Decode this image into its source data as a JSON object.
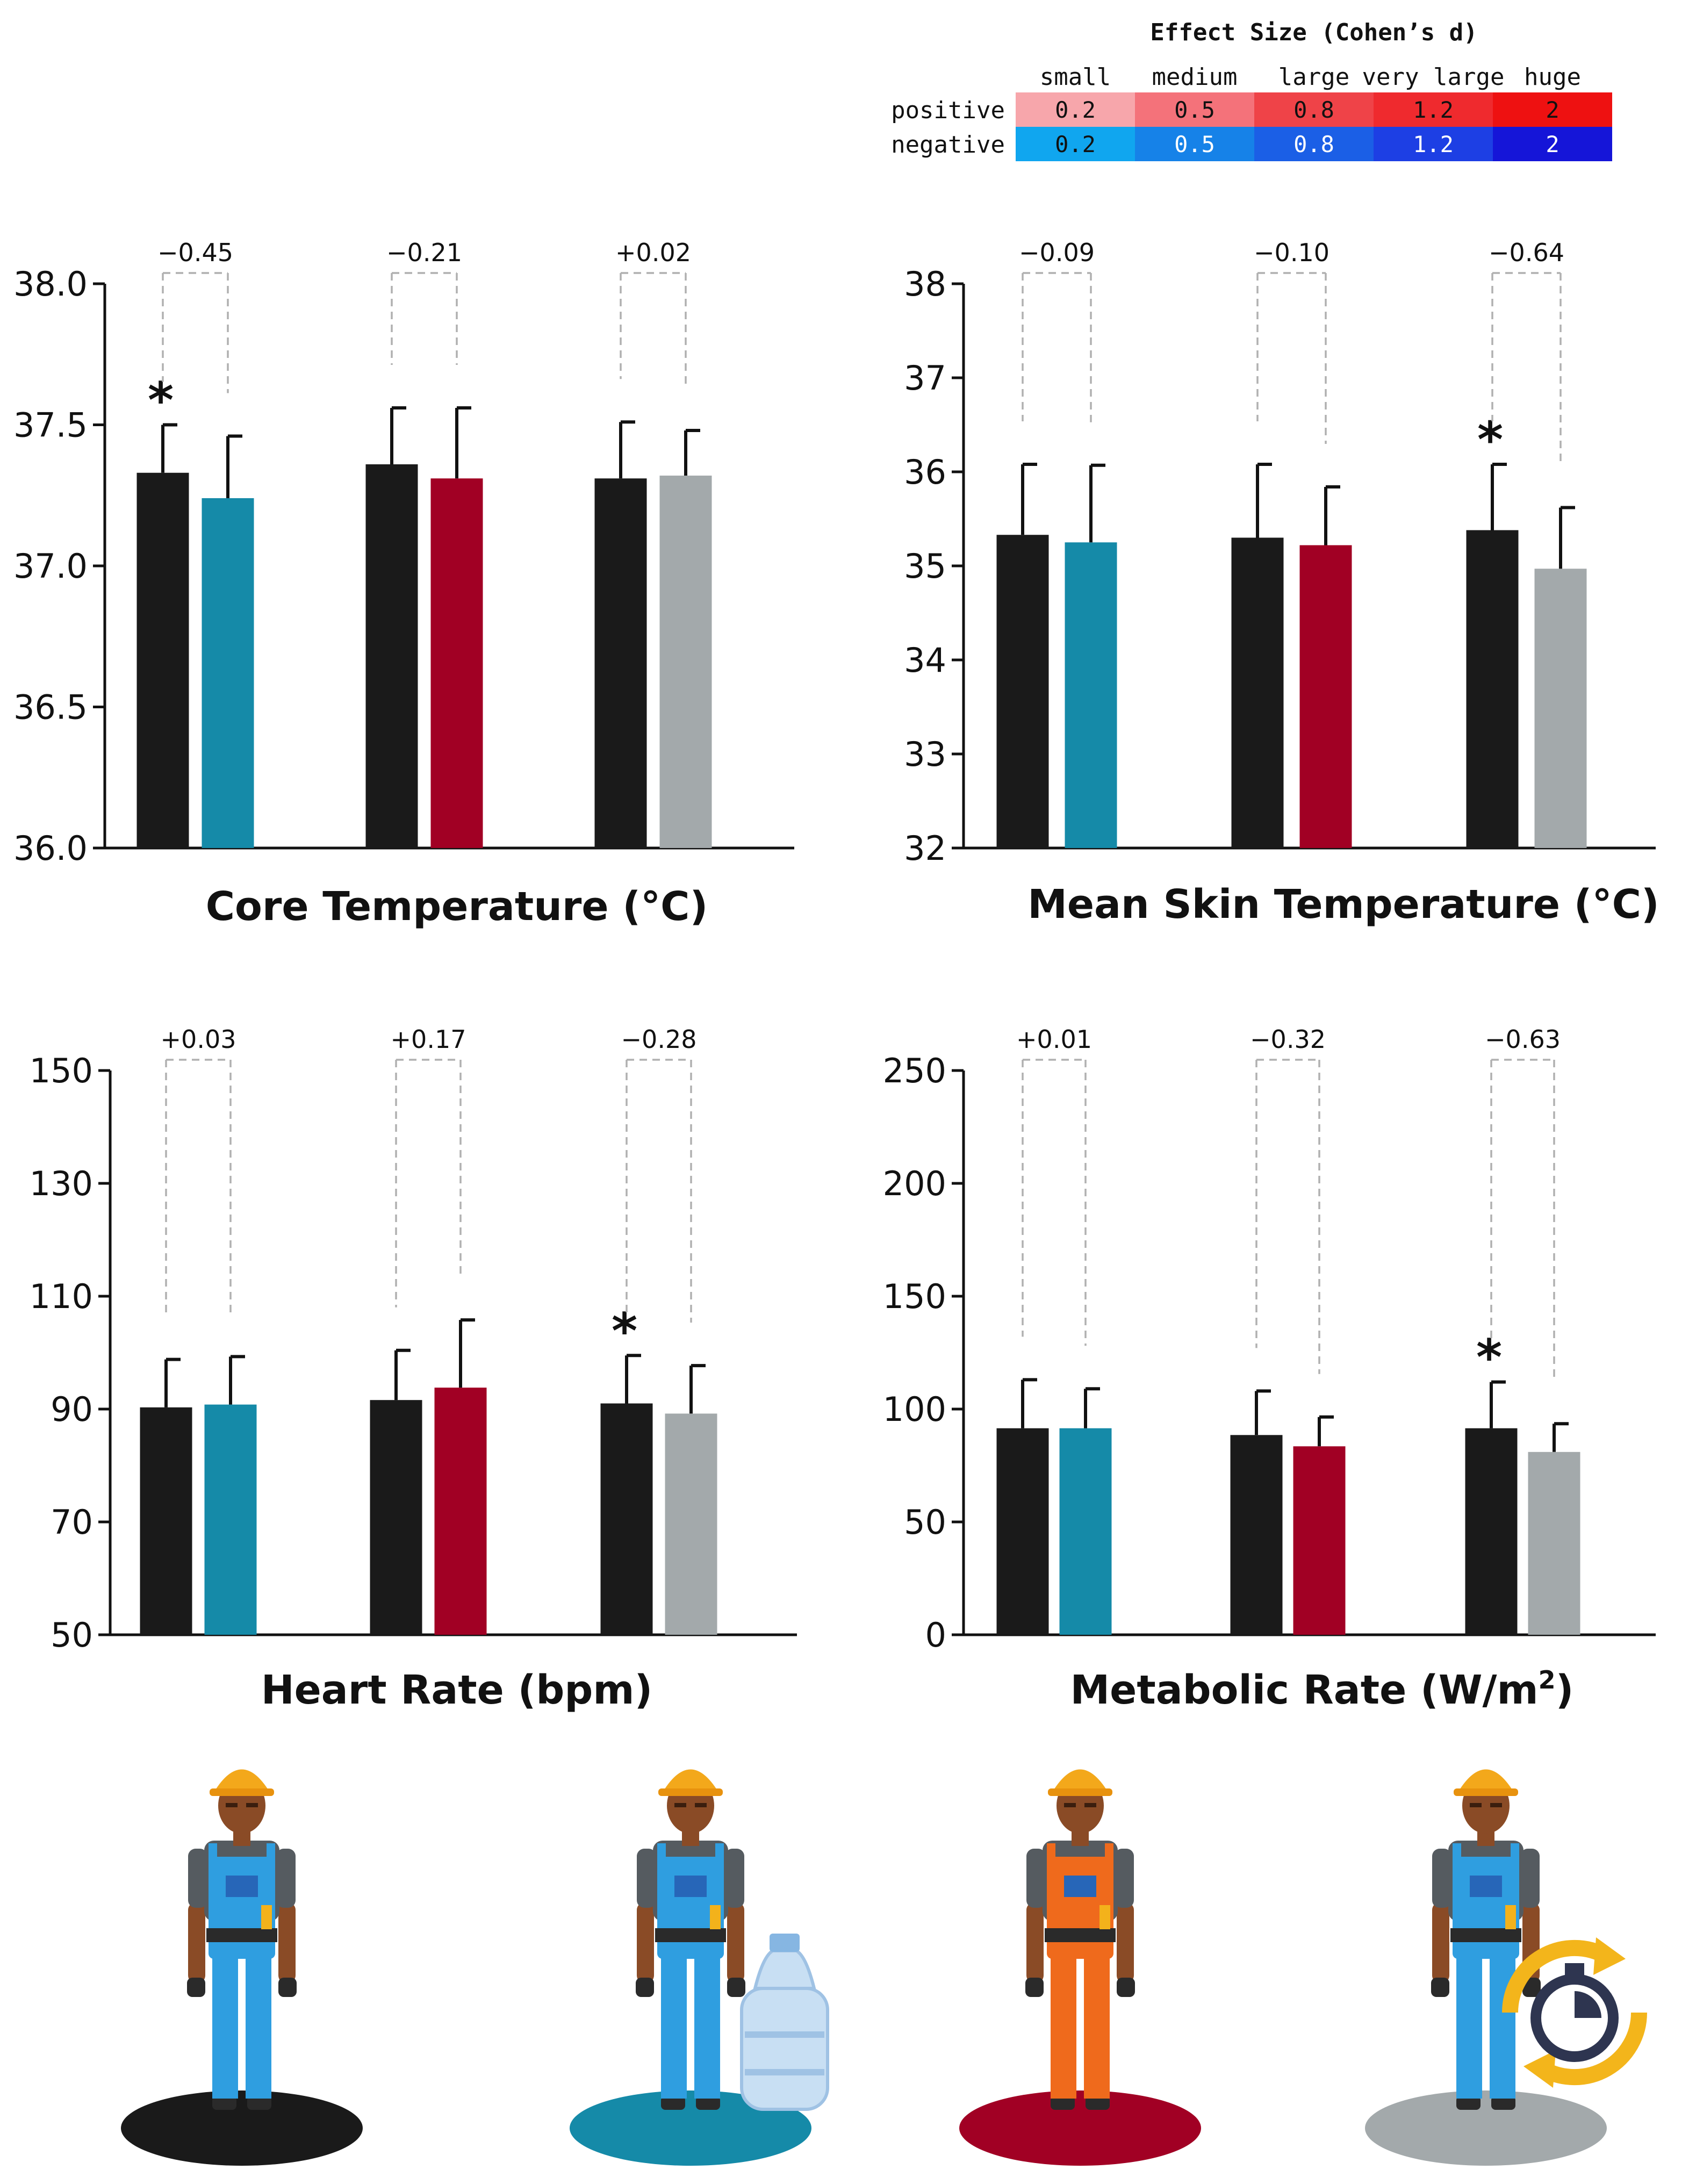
{
  "legend": {
    "title": "Effect Size (Cohen’s d)",
    "sizes": [
      "small",
      "medium",
      "large",
      "very large",
      "huge"
    ],
    "rows": [
      {
        "label": "positive",
        "values": [
          "0.2",
          "0.5",
          "0.8",
          "1.2",
          "2"
        ],
        "colors": [
          "#f7a6ab",
          "#f4727a",
          "#ef4348",
          "#ef2a2e",
          "#ee1111"
        ],
        "text_colors": [
          "#111111",
          "#111111",
          "#111111",
          "#111111",
          "#111111"
        ]
      },
      {
        "label": "negative",
        "values": [
          "0.2",
          "0.5",
          "0.8",
          "1.2",
          "2"
        ],
        "colors": [
          "#10a6ef",
          "#1682e8",
          "#1b5fe6",
          "#1d3fe4",
          "#1515d8"
        ],
        "text_colors": [
          "#111111",
          "#ffffff",
          "#ffffff",
          "#ffffff",
          "#ffffff"
        ]
      }
    ]
  },
  "colors": {
    "baseline": "#1a1a1a",
    "water": "#158aa8",
    "clothing": "#a10024",
    "rest": "#a3a9ab",
    "positive_small": "#f4a0a3",
    "negative_small": "#21a0ef",
    "negative_medium": "#1a55e0"
  },
  "chart_data": [
    {
      "type": "bar",
      "title": "Core Temperature (°C)",
      "ylim": [
        36.0,
        38.0
      ],
      "yticks": [
        "36.0",
        "36.5",
        "37.0",
        "37.5",
        "38.0"
      ],
      "groups": [
        {
          "bars": [
            {
              "value": 37.33,
              "error": 0.17,
              "color": "baseline",
              "significant": true
            },
            {
              "value": 37.24,
              "error": 0.22,
              "color": "water",
              "significant": false
            }
          ],
          "effect": {
            "label": "−0.45",
            "color": "negative_small"
          }
        },
        {
          "bars": [
            {
              "value": 37.36,
              "error": 0.2,
              "color": "baseline",
              "significant": false
            },
            {
              "value": 37.31,
              "error": 0.25,
              "color": "clothing",
              "significant": false
            }
          ],
          "effect": {
            "label": "−0.21",
            "color": "negative_small"
          }
        },
        {
          "bars": [
            {
              "value": 37.31,
              "error": 0.2,
              "color": "baseline",
              "significant": false
            },
            {
              "value": 37.32,
              "error": 0.16,
              "color": "rest",
              "significant": false
            }
          ],
          "effect": {
            "label": "+0.02",
            "color": "positive_small"
          }
        }
      ]
    },
    {
      "type": "bar",
      "title": "Mean Skin Temperature (°C)",
      "ylim": [
        32,
        38
      ],
      "yticks": [
        "32",
        "33",
        "34",
        "35",
        "36",
        "37",
        "38"
      ],
      "groups": [
        {
          "bars": [
            {
              "value": 35.33,
              "error": 0.75,
              "color": "baseline",
              "significant": false
            },
            {
              "value": 35.25,
              "error": 0.82,
              "color": "water",
              "significant": false
            }
          ],
          "effect": {
            "label": "−0.09",
            "color": "negative_small"
          }
        },
        {
          "bars": [
            {
              "value": 35.3,
              "error": 0.78,
              "color": "baseline",
              "significant": false
            },
            {
              "value": 35.22,
              "error": 0.62,
              "color": "clothing",
              "significant": false
            }
          ],
          "effect": {
            "label": "−0.10",
            "color": "negative_small"
          }
        },
        {
          "bars": [
            {
              "value": 35.38,
              "error": 0.7,
              "color": "baseline",
              "significant": true
            },
            {
              "value": 34.97,
              "error": 0.65,
              "color": "rest",
              "significant": false
            }
          ],
          "effect": {
            "label": "−0.64",
            "color": "negative_medium"
          }
        }
      ]
    },
    {
      "type": "bar",
      "title": "Heart Rate (bpm)",
      "ylim": [
        50,
        150
      ],
      "yticks": [
        "50",
        "70",
        "90",
        "110",
        "130",
        "150"
      ],
      "groups": [
        {
          "bars": [
            {
              "value": 90.3,
              "error": 8.5,
              "color": "baseline",
              "significant": false
            },
            {
              "value": 90.8,
              "error": 8.5,
              "color": "water",
              "significant": false
            }
          ],
          "effect": {
            "label": "+0.03",
            "color": "positive_small"
          }
        },
        {
          "bars": [
            {
              "value": 91.6,
              "error": 8.8,
              "color": "baseline",
              "significant": false
            },
            {
              "value": 93.8,
              "error": 12.0,
              "color": "clothing",
              "significant": false
            }
          ],
          "effect": {
            "label": "+0.17",
            "color": "positive_small"
          }
        },
        {
          "bars": [
            {
              "value": 91.0,
              "error": 8.5,
              "color": "baseline",
              "significant": true
            },
            {
              "value": 89.2,
              "error": 8.5,
              "color": "rest",
              "significant": false
            }
          ],
          "effect": {
            "label": "−0.28",
            "color": "negative_small"
          }
        }
      ]
    },
    {
      "type": "bar",
      "title": "Metabolic Rate (W/m",
      "title_sup": "2",
      "title_end": ")",
      "ylim": [
        0,
        250
      ],
      "yticks": [
        "0",
        "50",
        "100",
        "150",
        "200",
        "250"
      ],
      "groups": [
        {
          "bars": [
            {
              "value": 91.5,
              "error": 21.5,
              "color": "baseline",
              "significant": false
            },
            {
              "value": 91.5,
              "error": 17.5,
              "color": "water",
              "significant": false
            }
          ],
          "effect": {
            "label": "+0.01",
            "color": "positive_small"
          }
        },
        {
          "bars": [
            {
              "value": 88.5,
              "error": 19.5,
              "color": "baseline",
              "significant": false
            },
            {
              "value": 83.5,
              "error": 13.0,
              "color": "clothing",
              "significant": false
            }
          ],
          "effect": {
            "label": "−0.32",
            "color": "negative_small"
          }
        },
        {
          "bars": [
            {
              "value": 91.5,
              "error": 20.5,
              "color": "baseline",
              "significant": true
            },
            {
              "value": 81.0,
              "error": 12.5,
              "color": "rest",
              "significant": false
            }
          ],
          "effect": {
            "label": "−0.63",
            "color": "negative_medium"
          }
        }
      ]
    }
  ],
  "conditions": [
    {
      "name": "baseline",
      "suit": "#2f9ee0",
      "shadow": "#1a1a1a",
      "extra": "none"
    },
    {
      "name": "water",
      "suit": "#2f9ee0",
      "shadow": "#158aa8",
      "extra": "water-jug"
    },
    {
      "name": "clothing",
      "suit": "#ef6a1c",
      "shadow": "#a10024",
      "extra": "none"
    },
    {
      "name": "rest",
      "suit": "#2f9ee0",
      "shadow": "#a3a9ab",
      "extra": "stopwatch"
    }
  ],
  "sig_marker": "*"
}
